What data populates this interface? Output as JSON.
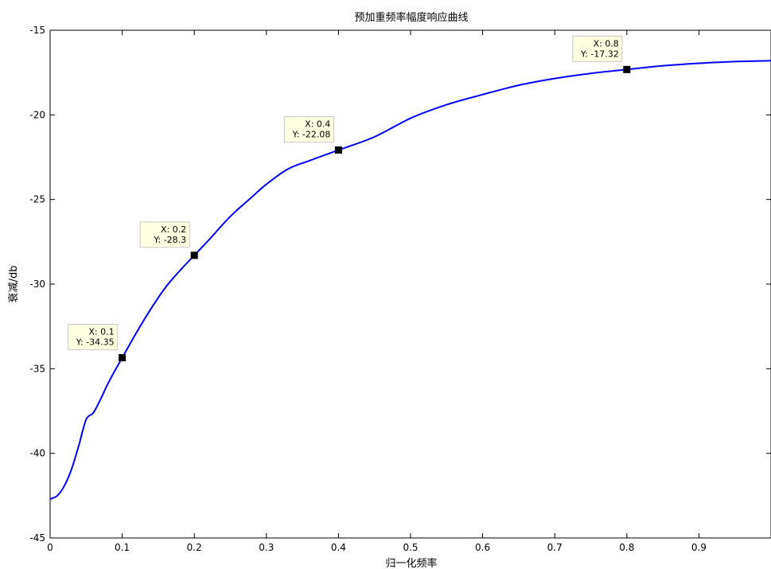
{
  "chart_data": {
    "type": "line",
    "title": "预加重频率幅度响应曲线",
    "xlabel": "归一化频率",
    "ylabel": "衰减/db",
    "xlim": [
      0,
      1
    ],
    "ylim": [
      -45,
      -15
    ],
    "x_ticks": [
      0,
      0.1,
      0.2,
      0.3,
      0.4,
      0.5,
      0.6,
      0.7,
      0.8,
      0.9
    ],
    "x_tick_labels": [
      "0",
      "0.1",
      "0.2",
      "0.3",
      "0.4",
      "0.5",
      "0.6",
      "0.7",
      "0.8",
      "0.9"
    ],
    "y_ticks": [
      -45,
      -40,
      -35,
      -30,
      -25,
      -20,
      -15
    ],
    "y_tick_labels": [
      "-45",
      "-40",
      "-35",
      "-30",
      "-25",
      "-20",
      "-15"
    ],
    "grid": false,
    "series": [
      {
        "color": "#0000ff",
        "x": [
          0,
          0.01,
          0.02,
          0.03,
          0.04,
          0.05,
          0.06,
          0.07,
          0.08,
          0.09,
          0.1,
          0.12,
          0.14,
          0.16,
          0.18,
          0.2,
          0.22,
          0.25,
          0.28,
          0.3,
          0.33,
          0.36,
          0.4,
          0.45,
          0.5,
          0.55,
          0.6,
          0.65,
          0.7,
          0.75,
          0.8,
          0.85,
          0.9,
          0.95,
          1.0
        ],
        "y": [
          -42.7,
          -42.5,
          -41.9,
          -40.9,
          -39.5,
          -38.0,
          -37.6,
          -36.8,
          -35.9,
          -35.1,
          -34.35,
          -32.85,
          -31.45,
          -30.2,
          -29.2,
          -28.3,
          -27.4,
          -26.0,
          -24.85,
          -24.1,
          -23.2,
          -22.7,
          -22.08,
          -21.3,
          -20.2,
          -19.4,
          -18.8,
          -18.25,
          -17.85,
          -17.55,
          -17.32,
          -17.1,
          -16.95,
          -16.85,
          -16.8
        ]
      }
    ],
    "datatips": [
      {
        "x": 0.1,
        "y": -34.35,
        "line1": "X: 0.1",
        "line2": "Y: -34.35"
      },
      {
        "x": 0.2,
        "y": -28.3,
        "line1": "X: 0.2",
        "line2": "Y: -28.3"
      },
      {
        "x": 0.4,
        "y": -22.08,
        "line1": "X: 0.4",
        "line2": "Y: -22.08"
      },
      {
        "x": 0.8,
        "y": -17.32,
        "line1": "X: 0.8",
        "line2": "Y: -17.32"
      }
    ]
  }
}
